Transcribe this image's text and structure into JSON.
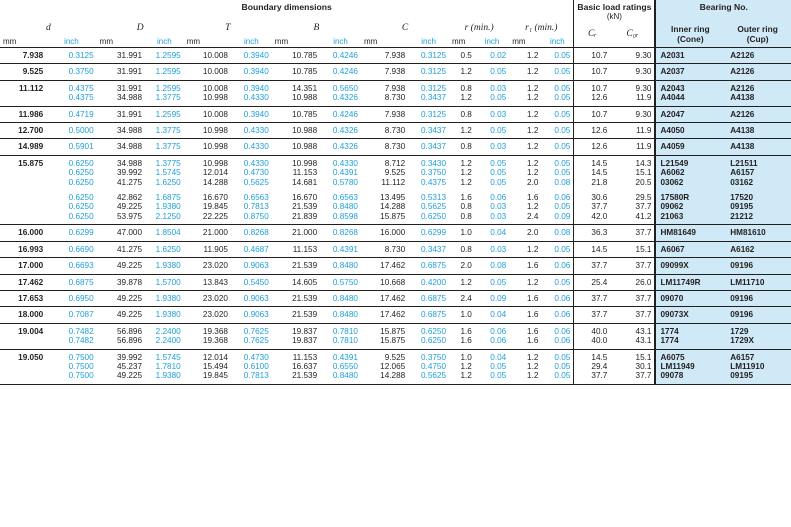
{
  "header": {
    "group_boundary": "Boundary dimensions",
    "group_load_line1": "Basic load ratings",
    "group_load_line2": "(kN)",
    "group_bearing": "Bearing No.",
    "sym_d": "d",
    "sym_D": "D",
    "sym_T": "T",
    "sym_B": "B",
    "sym_C": "C",
    "sym_r": "r (min.)",
    "sym_r1": "r₁ (min.)",
    "sym_Cr": "Cᵣ",
    "sym_C0r": "C₀ᵣ",
    "inner_ring_line1": "Inner ring",
    "inner_ring_line2": "(Cone)",
    "outer_ring_line1": "Outer ring",
    "outer_ring_line2": "(Cup)",
    "unit_mm": "mm",
    "unit_inch": "inch"
  },
  "groups": [
    {
      "d_mm": "7.938",
      "d_in": "0.3125",
      "rows": [
        [
          "31.991",
          "1.2595",
          "10.008",
          "0.3940",
          "10.785",
          "0.4246",
          "7.938",
          "0.3125",
          "0.5",
          "0.02",
          "1.2",
          "0.05",
          "10.7",
          "9.30",
          "A2031",
          "A2126"
        ]
      ]
    },
    {
      "d_mm": "9.525",
      "d_in": "0.3750",
      "rows": [
        [
          "31.991",
          "1.2595",
          "10.008",
          "0.3940",
          "10.785",
          "0.4246",
          "7.938",
          "0.3125",
          "1.2",
          "0.05",
          "1.2",
          "0.05",
          "10.7",
          "9.30",
          "A2037",
          "A2126"
        ]
      ]
    },
    {
      "d_mm": "11.112",
      "d_in": "0.4375",
      "rows": [
        [
          "31.991",
          "1.2595",
          "10.008",
          "0.3940",
          "14.351",
          "0.5650",
          "7.938",
          "0.3125",
          "0.8",
          "0.03",
          "1.2",
          "0.05",
          "10.7",
          "9.30",
          "A2043",
          "A2126"
        ],
        [
          "34.988",
          "1.3775",
          "10.998",
          "0.4330",
          "10.988",
          "0.4326",
          "8.730",
          "0.3437",
          "1.2",
          "0.05",
          "1.2",
          "0.05",
          "12.6",
          "11.9",
          "A4044",
          "A4138"
        ]
      ]
    },
    {
      "d_mm": "11.986",
      "d_in": "0.4719",
      "rows": [
        [
          "31.991",
          "1.2595",
          "10.008",
          "0.3940",
          "10.785",
          "0.4246",
          "7.938",
          "0.3125",
          "0.8",
          "0.03",
          "1.2",
          "0.05",
          "10.7",
          "9.30",
          "A2047",
          "A2126"
        ]
      ]
    },
    {
      "d_mm": "12.700",
      "d_in": "0.5000",
      "rows": [
        [
          "34.988",
          "1.3775",
          "10.998",
          "0.4330",
          "10.988",
          "0.4326",
          "8.730",
          "0.3437",
          "1.2",
          "0.05",
          "1.2",
          "0.05",
          "12.6",
          "11.9",
          "A4050",
          "A4138"
        ]
      ]
    },
    {
      "d_mm": "14.989",
      "d_in": "0.5901",
      "rows": [
        [
          "34.988",
          "1.3775",
          "10.998",
          "0.4330",
          "10.988",
          "0.4326",
          "8.730",
          "0.3437",
          "0.8",
          "0.03",
          "1.2",
          "0.05",
          "12.6",
          "11.9",
          "A4059",
          "A4138"
        ]
      ]
    },
    {
      "d_mm": "15.875",
      "d_in": "0.6250",
      "rows": [
        [
          "34.988",
          "1.3775",
          "10.998",
          "0.4330",
          "10.998",
          "0.4330",
          "8.712",
          "0.3430",
          "1.2",
          "0.05",
          "1.2",
          "0.05",
          "14.5",
          "14.3",
          "L21549",
          "L21511"
        ],
        [
          "39.992",
          "1.5745",
          "12.014",
          "0.4730",
          "11.153",
          "0.4391",
          "9.525",
          "0.3750",
          "1.2",
          "0.05",
          "1.2",
          "0.05",
          "14.5",
          "15.1",
          "A6062",
          "A6157"
        ],
        [
          "41.275",
          "1.6250",
          "14.288",
          "0.5625",
          "14.681",
          "0.5780",
          "11.112",
          "0.4375",
          "1.2",
          "0.05",
          "2.0",
          "0.08",
          "21.8",
          "20.5",
          "03062",
          "03162"
        ],
        [
          "42.862",
          "1.6875",
          "16.670",
          "0.6563",
          "16.670",
          "0.6563",
          "13.495",
          "0.5313",
          "1.6",
          "0.06",
          "1.6",
          "0.06",
          "30.6",
          "29.5",
          "17580R",
          "17520"
        ],
        [
          "49.225",
          "1.9380",
          "19.845",
          "0.7813",
          "21.539",
          "0.8480",
          "14.288",
          "0.5625",
          "0.8",
          "0.03",
          "1.2",
          "0.05",
          "37.7",
          "37.7",
          "09062",
          "09195"
        ],
        [
          "53.975",
          "2.1250",
          "22.225",
          "0.8750",
          "21.839",
          "0.8598",
          "15.875",
          "0.6250",
          "0.8",
          "0.03",
          "2.4",
          "0.09",
          "42.0",
          "41.2",
          "21063",
          "21212"
        ]
      ]
    },
    {
      "d_mm": "16.000",
      "d_in": "0.6299",
      "rows": [
        [
          "47.000",
          "1.8504",
          "21.000",
          "0.8268",
          "21.000",
          "0.8268",
          "16.000",
          "0.6299",
          "1.0",
          "0.04",
          "2.0",
          "0.08",
          "36.3",
          "37.7",
          "HM81649",
          "HM81610"
        ]
      ]
    },
    {
      "d_mm": "16.993",
      "d_in": "0.6690",
      "rows": [
        [
          "41.275",
          "1.6250",
          "11.905",
          "0.4687",
          "11.153",
          "0.4391",
          "8.730",
          "0.3437",
          "0.8",
          "0.03",
          "1.2",
          "0.05",
          "14.5",
          "15.1",
          "A6067",
          "A6162"
        ]
      ]
    },
    {
      "d_mm": "17.000",
      "d_in": "0.6693",
      "rows": [
        [
          "49.225",
          "1.9380",
          "23.020",
          "0.9063",
          "21.539",
          "0.8480",
          "17.462",
          "0.6875",
          "2.0",
          "0.08",
          "1.6",
          "0.06",
          "37.7",
          "37.7",
          "09099X",
          "09196"
        ]
      ]
    },
    {
      "d_mm": "17.462",
      "d_in": "0.6875",
      "rows": [
        [
          "39.878",
          "1.5700",
          "13.843",
          "0.5450",
          "14.605",
          "0.5750",
          "10.668",
          "0.4200",
          "1.2",
          "0.05",
          "1.2",
          "0.05",
          "25.4",
          "26.0",
          "LM11749R",
          "LM11710"
        ]
      ]
    },
    {
      "d_mm": "17.653",
      "d_in": "0.6950",
      "rows": [
        [
          "49.225",
          "1.9380",
          "23.020",
          "0.9063",
          "21.539",
          "0.8480",
          "17.462",
          "0.6875",
          "2.4",
          "0.09",
          "1.6",
          "0.06",
          "37.7",
          "37.7",
          "09070",
          "09196"
        ]
      ]
    },
    {
      "d_mm": "18.000",
      "d_in": "0.7087",
      "rows": [
        [
          "49.225",
          "1.9380",
          "23.020",
          "0.9063",
          "21.539",
          "0.8480",
          "17.462",
          "0.6875",
          "1.0",
          "0.04",
          "1.6",
          "0.06",
          "37.7",
          "37.7",
          "09073X",
          "09196"
        ]
      ]
    },
    {
      "d_mm": "19.004",
      "d_in": "0.7482",
      "rows": [
        [
          "56.896",
          "2.2400",
          "19.368",
          "0.7625",
          "19.837",
          "0.7810",
          "15.875",
          "0.6250",
          "1.6",
          "0.06",
          "1.6",
          "0.06",
          "40.0",
          "43.1",
          "1774",
          "1729"
        ],
        [
          "56.896",
          "2.2400",
          "19.368",
          "0.7625",
          "19.837",
          "0.7810",
          "15.875",
          "0.6250",
          "1.6",
          "0.06",
          "1.6",
          "0.06",
          "40.0",
          "43.1",
          "1774",
          "1729X"
        ]
      ]
    },
    {
      "d_mm": "19.050",
      "d_in": "0.7500",
      "rows": [
        [
          "39.992",
          "1.5745",
          "12.014",
          "0.4730",
          "11.153",
          "0.4391",
          "9.525",
          "0.3750",
          "1.0",
          "0.04",
          "1.2",
          "0.05",
          "14.5",
          "15.1",
          "A6075",
          "A6157"
        ],
        [
          "45.237",
          "1.7810",
          "15.494",
          "0.6100",
          "16.637",
          "0.6550",
          "12.065",
          "0.4750",
          "1.2",
          "0.05",
          "1.2",
          "0.05",
          "29.4",
          "30.1",
          "LM11949",
          "LM11910"
        ],
        [
          "49.225",
          "1.9380",
          "19.845",
          "0.7813",
          "21.539",
          "0.8480",
          "14.288",
          "0.5625",
          "1.2",
          "0.05",
          "1.2",
          "0.05",
          "37.7",
          "37.7",
          "09078",
          "09195"
        ]
      ]
    }
  ]
}
